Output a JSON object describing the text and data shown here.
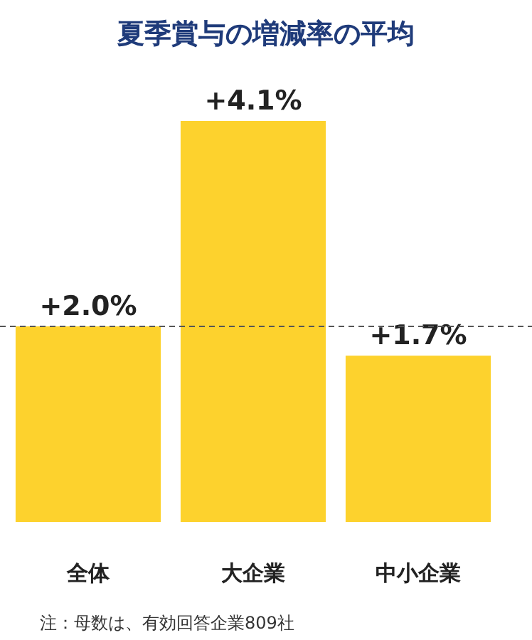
{
  "chart_data": {
    "type": "bar",
    "title": "夏季賞与の増減率の平均",
    "categories": [
      "全体",
      "大企業",
      "中小企業"
    ],
    "values": [
      2.0,
      4.1,
      1.7
    ],
    "colors": [
      "#fdd22d",
      "#fdd22d",
      "#fdd22d"
    ],
    "value_labels": [
      "+2.0%",
      "+4.1%",
      "+1.7%"
    ],
    "ref_lines": [
      {
        "axis": "y",
        "value": 2.0,
        "color": "#555555",
        "line_style": "dashed"
      }
    ],
    "annotations": [
      "注：母数は、有効回答企業809社"
    ]
  }
}
